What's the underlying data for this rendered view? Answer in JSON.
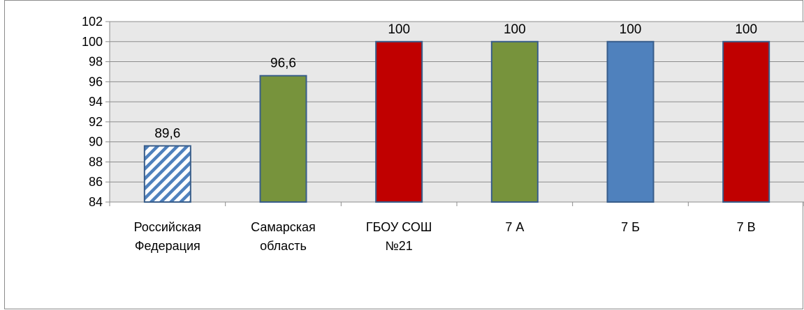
{
  "chart_data": {
    "type": "bar",
    "categories": [
      [
        "Российская",
        "Федерация"
      ],
      [
        "Самарская",
        "область"
      ],
      [
        "ГБОУ СОШ",
        "№21"
      ],
      [
        "7 А"
      ],
      [
        "7 Б"
      ],
      [
        "7 В"
      ]
    ],
    "values": [
      89.6,
      96.6,
      100,
      100,
      100,
      100
    ],
    "data_labels": [
      "89,6",
      "96,6",
      "100",
      "100",
      "100",
      "100"
    ],
    "bar_styles": [
      "hatched",
      "solid",
      "solid",
      "solid",
      "solid",
      "solid"
    ],
    "bar_colors": [
      "#4F81BD",
      "#77933C",
      "#C00000",
      "#77933C",
      "#4F81BD",
      "#C00000"
    ],
    "bar_border_color": "#385D8A",
    "ylim": [
      84,
      102
    ],
    "yticks": [
      84,
      86,
      88,
      90,
      92,
      94,
      96,
      98,
      100,
      102
    ],
    "grid": true,
    "plot_background": "#E8E8E8",
    "title": "",
    "xlabel": "",
    "ylabel": "",
    "legend": "none"
  }
}
